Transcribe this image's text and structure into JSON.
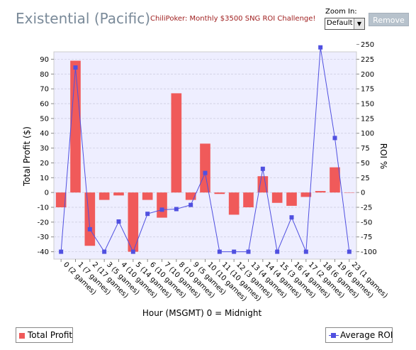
{
  "header": {
    "title": "Existential (Pacific)",
    "promo_link": "ChiliPoker: Monthly $3500 SNG ROI Challenge!",
    "zoom_label": "Zoom In:",
    "zoom_value": "Default",
    "remove_label": "Remove"
  },
  "legend": {
    "profit_label": "Total Profit",
    "roi_label": "Average ROI"
  },
  "chart_data": {
    "type": "bar",
    "title": "",
    "xlabel": "Hour (MSGMT) 0 = Midnight",
    "ylabel": "Total Profit ($)",
    "y2label": "ROI %",
    "ylim": [
      -45,
      95
    ],
    "y2lim": [
      -112.5,
      237.5
    ],
    "y_ticks": [
      90,
      80,
      70,
      60,
      50,
      40,
      30,
      20,
      10,
      0,
      -10,
      -20,
      -30,
      -40
    ],
    "y2_ticks": [
      250,
      225,
      200,
      175,
      150,
      125,
      100,
      75,
      50,
      25,
      0,
      -25,
      -50,
      -75,
      -100
    ],
    "grid": true,
    "legend_position": "bottom",
    "categories": [
      "0 (2 games)",
      "1 (7 games)",
      "2 (17 games)",
      "3 (5 games)",
      "4 (10 games)",
      "5 (14 games)",
      "6 (10 games)",
      "7 (10 games)",
      "8 (10 games)",
      "9 (5 games)",
      "10 (10 games)",
      "11 (10 games)",
      "12 (3 games)",
      "13 (4 games)",
      "14 (4 games)",
      "15 (3 games)",
      "16 (4 games)",
      "17 (2 games)",
      "18 (6 games)",
      "19 (6 games)",
      "23 (1 games)"
    ],
    "series": [
      {
        "name": "Total Profit",
        "kind": "bar",
        "axis": "left",
        "color": "#f05a5a",
        "values": [
          -10,
          89,
          -36,
          -5,
          -2,
          -40,
          -5,
          -17,
          67,
          -5,
          33,
          -1,
          -15,
          -10,
          11,
          -7,
          -9,
          -3,
          1,
          17,
          0
        ]
      },
      {
        "name": "Average ROI",
        "kind": "line",
        "axis": "right",
        "color": "#5050e0",
        "values": [
          -100,
          211,
          -62,
          -100,
          -49,
          -100,
          -36,
          -29,
          -28,
          -21,
          33,
          -100,
          -100,
          -100,
          40,
          -100,
          -42,
          -100,
          245,
          92,
          -100
        ]
      }
    ]
  }
}
